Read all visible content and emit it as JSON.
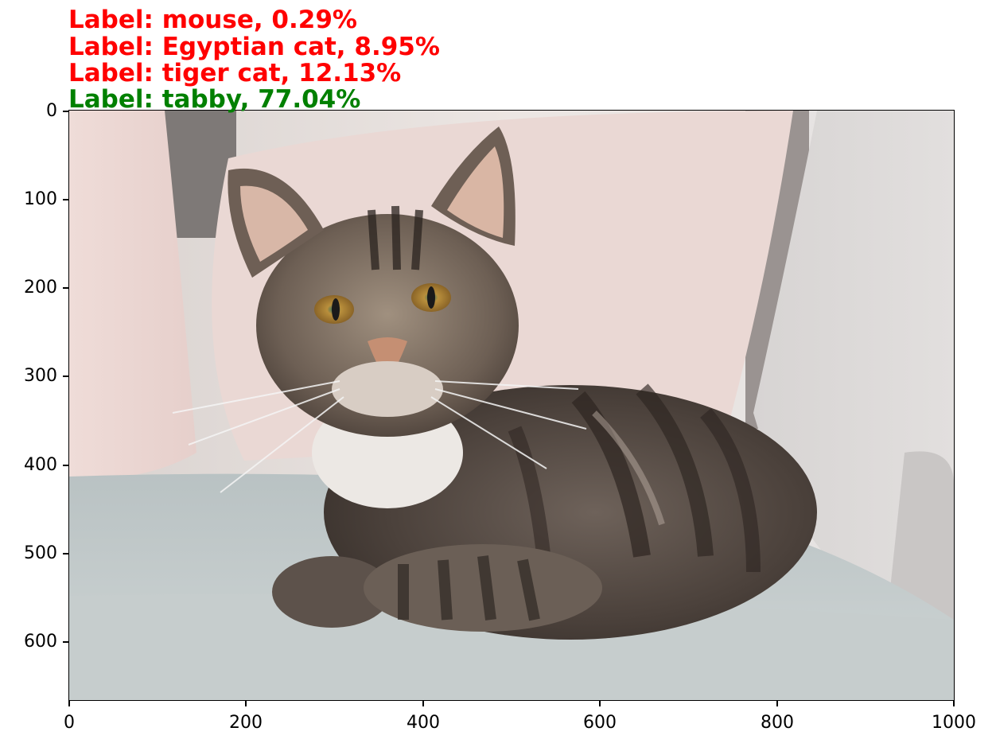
{
  "predictions": [
    {
      "text": "Label: mouse, 0.29%",
      "color": "#ff0000"
    },
    {
      "text": "Label: Egyptian cat, 8.95%",
      "color": "#ff0000"
    },
    {
      "text": "Label: tiger cat, 12.13%",
      "color": "#ff0000"
    },
    {
      "text": "Label: tabby, 77.04%",
      "color": "#008000"
    }
  ],
  "axes": {
    "x_ticks": [
      "0",
      "200",
      "400",
      "600",
      "800",
      "1000"
    ],
    "y_ticks": [
      "0",
      "100",
      "200",
      "300",
      "400",
      "500",
      "600"
    ]
  },
  "image": {
    "subject": "tabby cat lying on grey sofa with pink pillows",
    "icon": "cat-photo"
  }
}
